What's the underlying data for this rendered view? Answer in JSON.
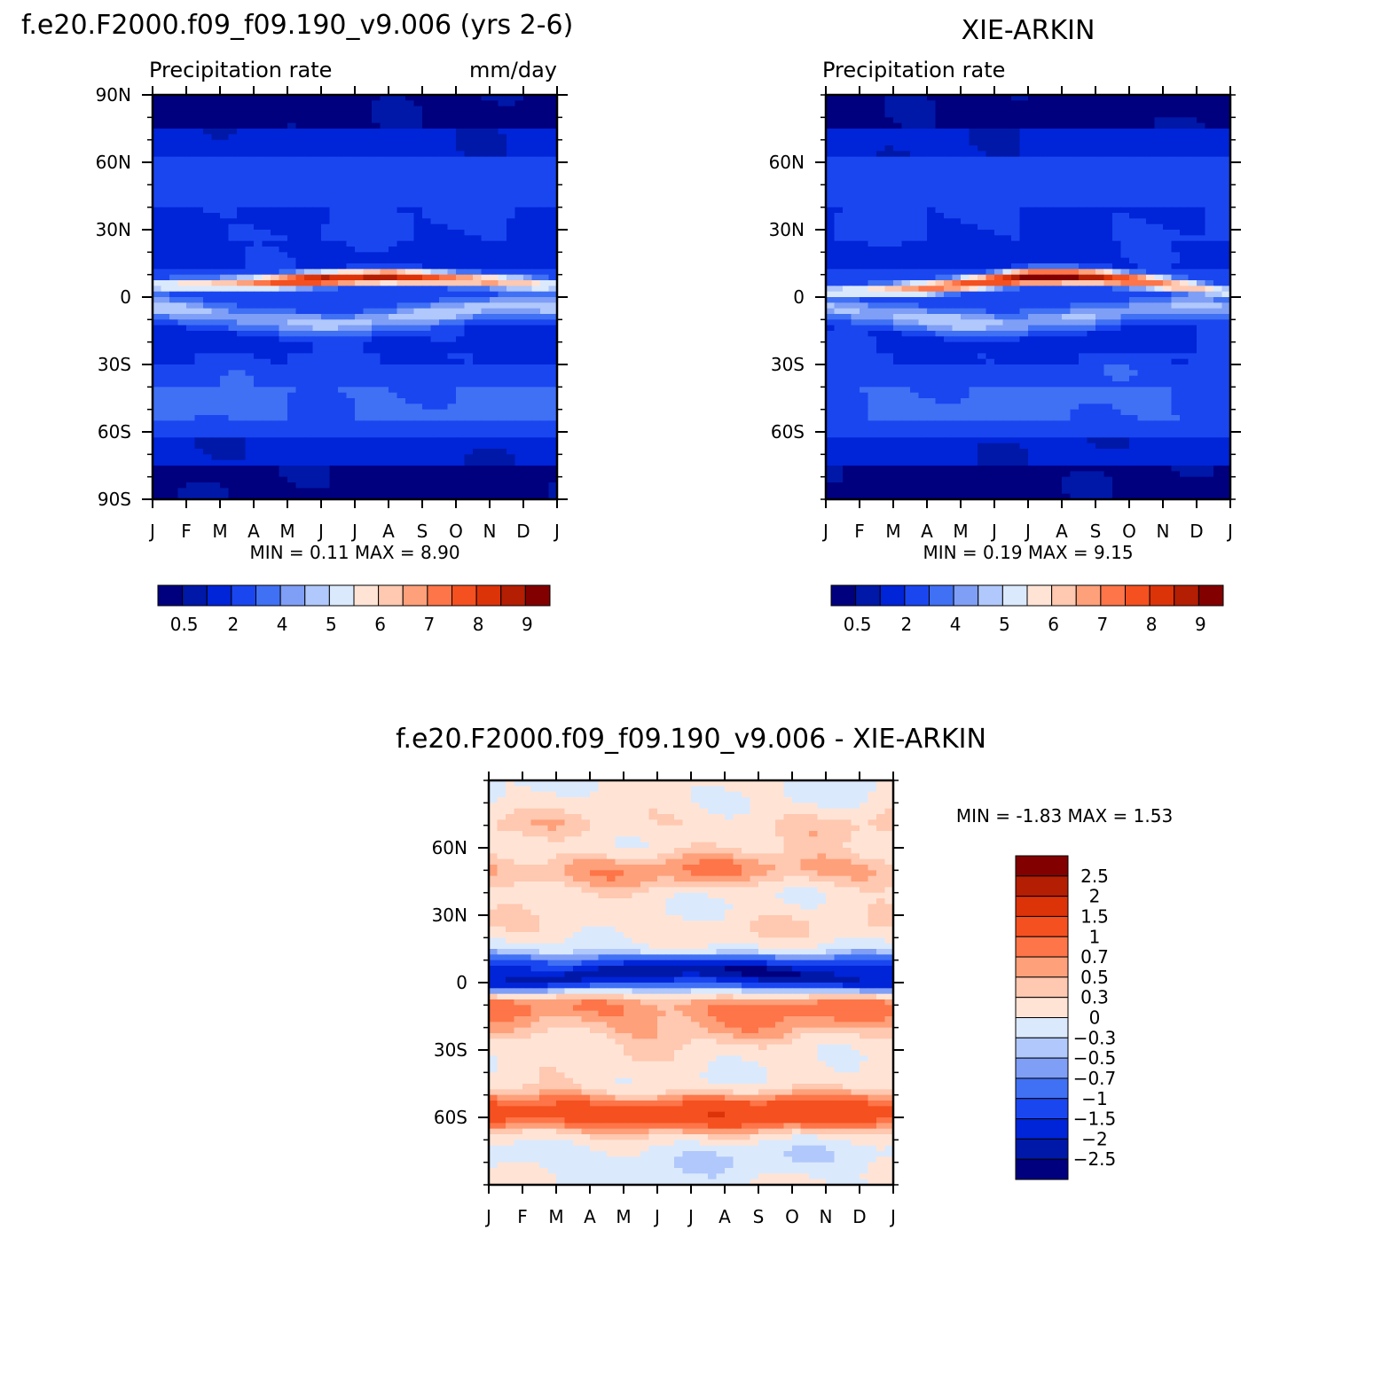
{
  "colors": {
    "abs": [
      "#00007f",
      "#0018a8",
      "#0024d8",
      "#1a46f0",
      "#4070f4",
      "#7f9ef6",
      "#b0c8fb",
      "#dbe9fc",
      "#ffe4d6",
      "#ffc8b0",
      "#fea07a",
      "#fd7548",
      "#f5501f",
      "#dc3309",
      "#b41e03",
      "#820000"
    ],
    "diff": [
      "#00007f",
      "#0018a8",
      "#0024d8",
      "#1a46f0",
      "#4070f4",
      "#7f9ef6",
      "#b0c8fb",
      "#dbe9fc",
      "#ffe4d6",
      "#ffc8b0",
      "#fea07a",
      "#fd7548",
      "#f5501f",
      "#dc3309",
      "#b41e03",
      "#820000"
    ]
  },
  "chart_data": [
    {
      "type": "heatmap",
      "title": "f.e20.F2000.f09_f09.190_v9.006 (yrs 2-6)",
      "subtitle_left": "Precipitation rate",
      "subtitle_right": "mm/day",
      "x_ticks": [
        "J",
        "F",
        "M",
        "A",
        "M",
        "J",
        "J",
        "A",
        "S",
        "O",
        "N",
        "D",
        "J"
      ],
      "y_ticks": [
        "90N",
        "60N",
        "30N",
        "0",
        "30S",
        "60S",
        "90S"
      ],
      "ylim": [
        -90,
        90
      ],
      "min_max_text": "MIN =    0.11  MAX =    8.90",
      "min": 0.11,
      "max": 8.9,
      "colorbar_labels": [
        "0.5",
        "2",
        "4",
        "5",
        "6",
        "7",
        "8",
        "9"
      ],
      "itcz": [
        {
          "month": 0,
          "lat": 5,
          "amp": 5.0
        },
        {
          "month": 3,
          "lat": 6,
          "amp": 6.8
        },
        {
          "month": 5,
          "lat": 8,
          "amp": 8.9
        },
        {
          "month": 7,
          "lat": 9,
          "amp": 8.6
        },
        {
          "month": 9,
          "lat": 8,
          "amp": 7.6
        },
        {
          "month": 12,
          "lat": 5,
          "amp": 5.0
        }
      ]
    },
    {
      "type": "heatmap",
      "title": "XIE-ARKIN",
      "subtitle_left": "Precipitation rate",
      "x_ticks": [
        "J",
        "F",
        "M",
        "A",
        "M",
        "J",
        "J",
        "A",
        "S",
        "O",
        "N",
        "D",
        "J"
      ],
      "y_ticks": [
        "60N",
        "30N",
        "0",
        "30S",
        "60S"
      ],
      "ylim": [
        -90,
        90
      ],
      "min_max_text": "MIN =    0.19  MAX =    9.15",
      "min": 0.19,
      "max": 9.15,
      "colorbar_labels": [
        "0.5",
        "2",
        "4",
        "5",
        "6",
        "7",
        "8",
        "9"
      ],
      "itcz": [
        {
          "month": 0,
          "lat": 2,
          "amp": 5.5
        },
        {
          "month": 3,
          "lat": 4,
          "amp": 7.0
        },
        {
          "month": 6,
          "lat": 9,
          "amp": 9.15
        },
        {
          "month": 8,
          "lat": 9,
          "amp": 8.7
        },
        {
          "month": 10,
          "lat": 6,
          "amp": 7.0
        },
        {
          "month": 12,
          "lat": 2,
          "amp": 5.5
        }
      ]
    },
    {
      "type": "heatmap",
      "title": "f.e20.F2000.f09_f09.190_v9.006 - XIE-ARKIN",
      "x_ticks": [
        "J",
        "F",
        "M",
        "A",
        "M",
        "J",
        "J",
        "A",
        "S",
        "O",
        "N",
        "D",
        "J"
      ],
      "y_ticks": [
        "60N",
        "30N",
        "0",
        "30S",
        "60S"
      ],
      "ylim": [
        -90,
        90
      ],
      "min_max_text": "MIN =   -1.83  MAX =    1.53",
      "min": -1.83,
      "max": 1.53,
      "colorbar_labels": [
        "2.5",
        "2",
        "1.5",
        "1",
        "0.7",
        "0.5",
        "0.3",
        "0",
        "-0.3",
        "-0.5",
        "-0.7",
        "-1",
        "-1.5",
        "-2",
        "-2.5"
      ],
      "bands": [
        {
          "lat": 70,
          "value": 0.3
        },
        {
          "lat": 50,
          "value": 0.6
        },
        {
          "lat": 25,
          "value": 0.2
        },
        {
          "lat": 3,
          "value": -1.6
        },
        {
          "lat": -8,
          "value": 0.8
        },
        {
          "lat": -20,
          "value": 0.4
        },
        {
          "lat": -35,
          "value": 0.1
        },
        {
          "lat": -58,
          "value": 1.3
        },
        {
          "lat": -78,
          "value": -0.2
        }
      ]
    }
  ]
}
